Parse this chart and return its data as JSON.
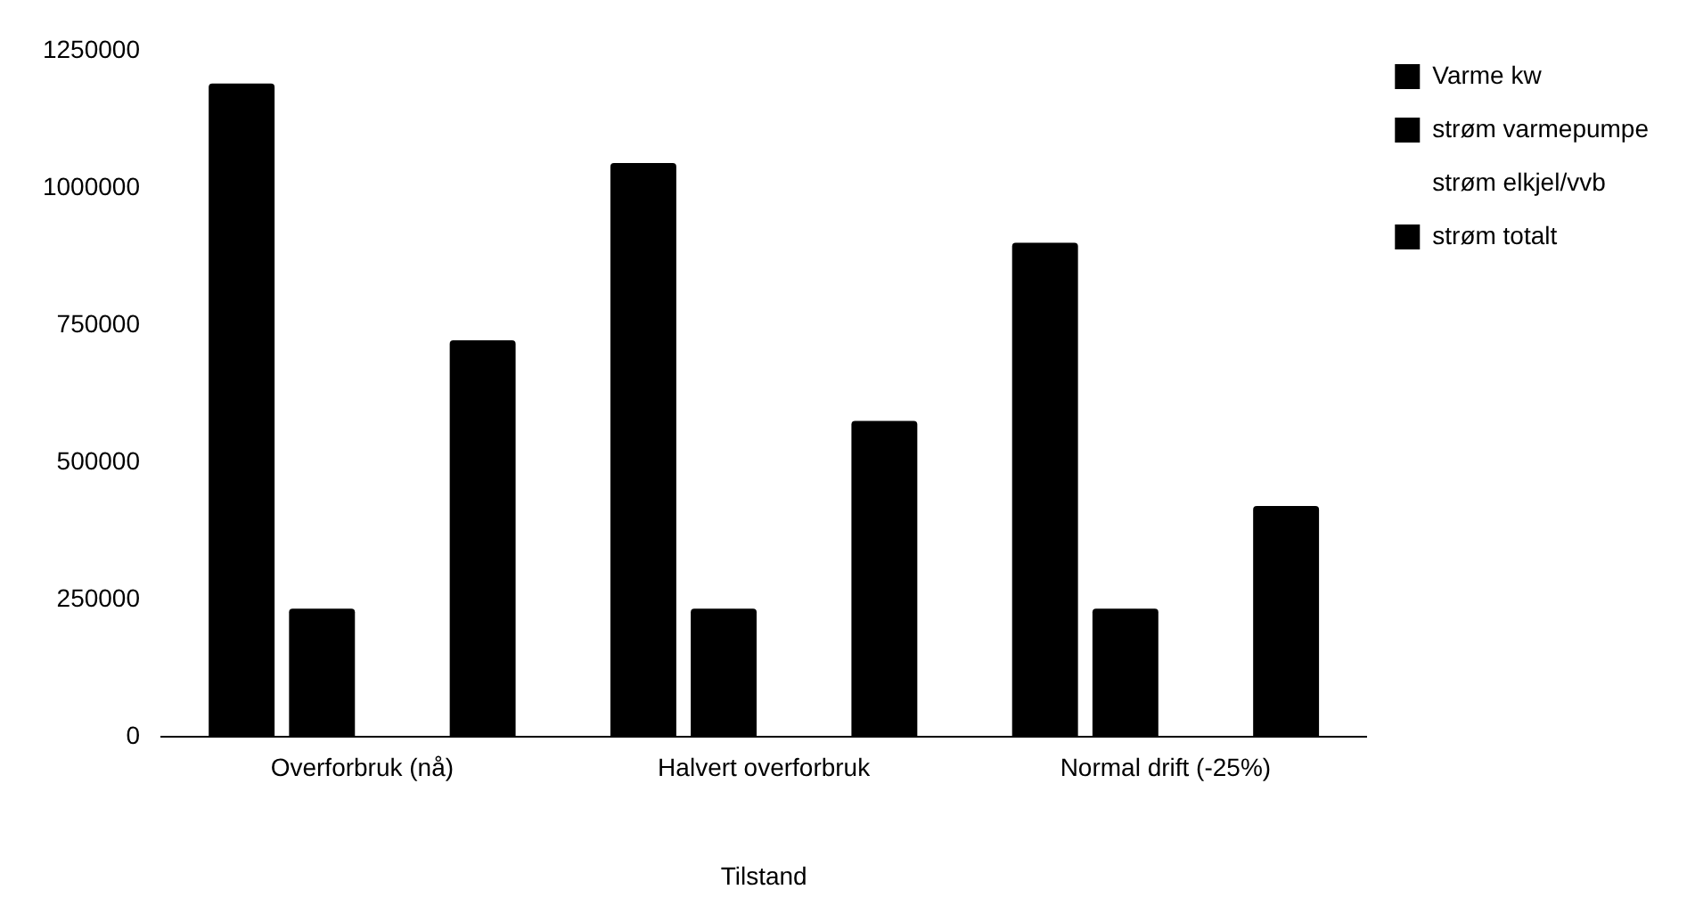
{
  "chart_data": {
    "type": "bar",
    "xlabel": "Tilstand",
    "categories": [
      "Overforbruk (nå)",
      "Halvert overforbruk",
      "Normal drift (-25%)"
    ],
    "series": [
      {
        "name": "Varme kw",
        "color": "#000000",
        "values": [
          1190000,
          1045000,
          900000
        ]
      },
      {
        "name": "strøm varmepumpe",
        "color": "#000000",
        "values": [
          233000,
          233000,
          233000
        ]
      },
      {
        "name": "strøm elkjel/vvb",
        "values": [
          0,
          0,
          0
        ]
      },
      {
        "name": "strøm totalt",
        "color": "#000000",
        "values": [
          722000,
          575000,
          420000
        ]
      }
    ],
    "ylim": [
      0,
      1250000
    ],
    "yticks": [
      0,
      250000,
      500000,
      750000,
      1000000,
      1250000
    ],
    "grid": false,
    "legend": "top right"
  }
}
